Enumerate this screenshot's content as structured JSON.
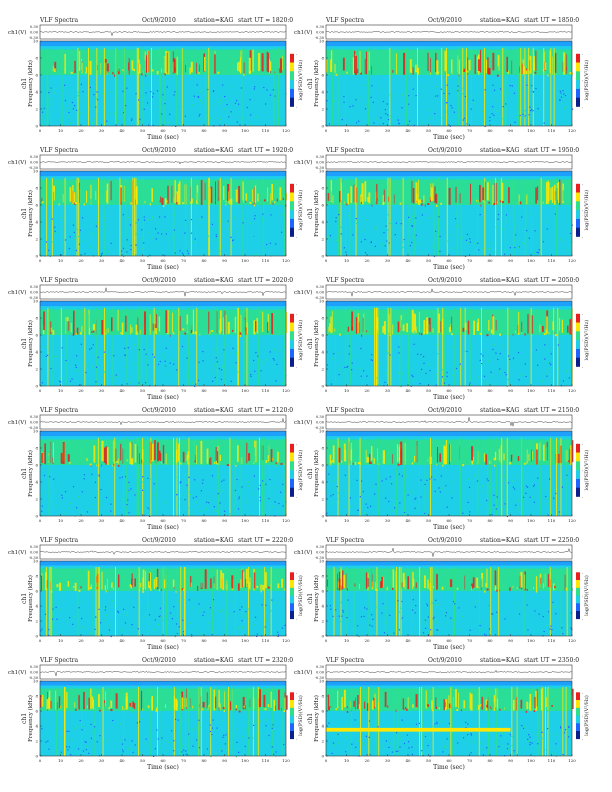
{
  "title_prefix": "VLF Spectra",
  "date": "Oct/9/2010",
  "station_label": "station=KAG",
  "start_label": "start UT =",
  "ch_axis_label": "ch1(V)",
  "ch_ticks": [
    "0.30",
    "0.00",
    "-0.30"
  ],
  "spec_ylabel": "Frequency (kHz)",
  "spec_ch_label": "ch1",
  "spec_yticks": [
    "10",
    "8",
    "6",
    "4",
    "2",
    "0"
  ],
  "time_label": "Time (sec)",
  "time_ticks": [
    "0",
    "10",
    "20",
    "30",
    "40",
    "50",
    "60",
    "70",
    "80",
    "90",
    "100",
    "110",
    "120"
  ],
  "colorbar_label": "log(PSD)(V²/Hz)",
  "colorbar_ticks": [
    "-",
    "-",
    "-"
  ],
  "colors": {
    "background": "#1ecfe8",
    "low": "#1e64ff",
    "mid": "#2ee08a",
    "high": "#ffe600",
    "peak": "#e8201c",
    "noise_top": "#1ea0ff"
  },
  "chart_data": [
    {
      "type": "heatmap",
      "start_ut": "1820:0",
      "x_range": [
        0,
        120
      ],
      "y_range": [
        0,
        10
      ],
      "xlabel": "Time (sec)",
      "ylabel": "Frequency (kHz)",
      "band_khz": [
        6,
        9
      ]
    },
    {
      "type": "heatmap",
      "start_ut": "1850:0",
      "x_range": [
        0,
        120
      ],
      "y_range": [
        0,
        10
      ],
      "xlabel": "Time (sec)",
      "ylabel": "Frequency (kHz)",
      "band_khz": [
        6,
        9
      ]
    },
    {
      "type": "heatmap",
      "start_ut": "1920:0",
      "x_range": [
        0,
        120
      ],
      "y_range": [
        0,
        10
      ],
      "xlabel": "Time (sec)",
      "ylabel": "Frequency (kHz)",
      "band_khz": [
        6,
        9
      ]
    },
    {
      "type": "heatmap",
      "start_ut": "1950:0",
      "x_range": [
        0,
        120
      ],
      "y_range": [
        0,
        10
      ],
      "xlabel": "Time (sec)",
      "ylabel": "Frequency (kHz)",
      "band_khz": [
        6,
        9
      ]
    },
    {
      "type": "heatmap",
      "start_ut": "2020:0",
      "x_range": [
        0,
        120
      ],
      "y_range": [
        0,
        10
      ],
      "xlabel": "Time (sec)",
      "ylabel": "Frequency (kHz)",
      "band_khz": [
        6,
        9
      ]
    },
    {
      "type": "heatmap",
      "start_ut": "2050:0",
      "x_range": [
        0,
        120
      ],
      "y_range": [
        0,
        10
      ],
      "xlabel": "Time (sec)",
      "ylabel": "Frequency (kHz)",
      "band_khz": [
        6,
        9
      ]
    },
    {
      "type": "heatmap",
      "start_ut": "2120:0",
      "x_range": [
        0,
        120
      ],
      "y_range": [
        0,
        10
      ],
      "xlabel": "Time (sec)",
      "ylabel": "Frequency (kHz)",
      "band_khz": [
        6,
        9
      ]
    },
    {
      "type": "heatmap",
      "start_ut": "2150:0",
      "x_range": [
        0,
        120
      ],
      "y_range": [
        0,
        10
      ],
      "xlabel": "Time (sec)",
      "ylabel": "Frequency (kHz)",
      "band_khz": [
        6,
        9
      ]
    },
    {
      "type": "heatmap",
      "start_ut": "2220:0",
      "x_range": [
        0,
        120
      ],
      "y_range": [
        0,
        10
      ],
      "xlabel": "Time (sec)",
      "ylabel": "Frequency (kHz)",
      "band_khz": [
        6,
        9
      ]
    },
    {
      "type": "heatmap",
      "start_ut": "2250:0",
      "x_range": [
        0,
        120
      ],
      "y_range": [
        0,
        10
      ],
      "xlabel": "Time (sec)",
      "ylabel": "Frequency (kHz)",
      "band_khz": [
        6,
        9
      ]
    },
    {
      "type": "heatmap",
      "start_ut": "2320:0",
      "x_range": [
        0,
        120
      ],
      "y_range": [
        0,
        10
      ],
      "xlabel": "Time (sec)",
      "ylabel": "Frequency (kHz)",
      "band_khz": [
        6,
        9
      ]
    },
    {
      "type": "heatmap",
      "start_ut": "2350:0",
      "x_range": [
        0,
        120
      ],
      "y_range": [
        0,
        10
      ],
      "xlabel": "Time (sec)",
      "ylabel": "Frequency (kHz)",
      "band_khz": [
        6,
        9
      ],
      "line_khz": 3.5
    }
  ]
}
